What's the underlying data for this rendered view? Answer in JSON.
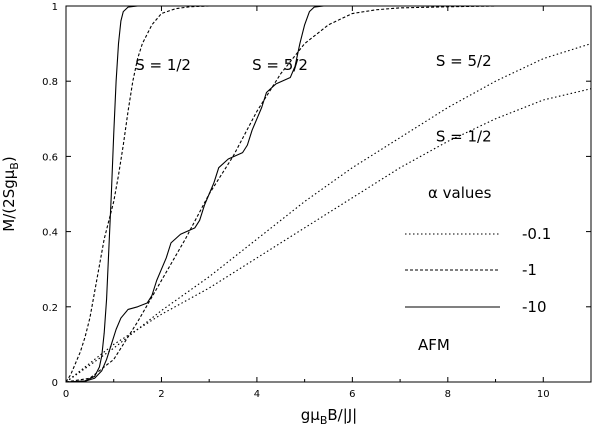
{
  "chart_data": {
    "type": "line",
    "xlabel": {
      "pre": "gμ",
      "sub": "B",
      "post": "B/|J|"
    },
    "ylabel": {
      "pre": "M/(2Sgμ",
      "sub": "B",
      "post": ")"
    },
    "xlim": [
      0,
      11
    ],
    "ylim": [
      0,
      1
    ],
    "xticks": [
      0,
      2,
      4,
      6,
      8,
      10
    ],
    "yticks": [
      0,
      0.2,
      0.4,
      0.6,
      0.8,
      1
    ],
    "xtick_labels": [
      "0",
      "2",
      "4",
      "6",
      "8",
      "10"
    ],
    "ytick_labels": [
      "0",
      "0.2",
      "0.4",
      "0.6",
      "0.8",
      "1"
    ],
    "grid": false,
    "legend": {
      "title": "α values",
      "placement": "right-center",
      "entries": [
        {
          "label": "-0.1",
          "style": "dotted"
        },
        {
          "label": "-1",
          "style": "dashed"
        },
        {
          "label": "-10",
          "style": "solid"
        }
      ],
      "footer": "AFM"
    },
    "annotations": [
      {
        "text": "S = 1/2",
        "x": 1.45,
        "y": 0.83
      },
      {
        "text": "S = 5/2",
        "x": 3.9,
        "y": 0.83
      },
      {
        "text": "S = 5/2",
        "x": 7.75,
        "y": 0.84
      },
      {
        "text": "S = 1/2",
        "x": 7.75,
        "y": 0.64
      }
    ],
    "series": [
      {
        "style": "solid",
        "spin": "1/2",
        "alpha": "-10",
        "x": [
          0,
          0.4,
          0.6,
          0.7,
          0.75,
          0.8,
          0.85,
          0.9,
          0.95,
          1.0,
          1.05,
          1.1,
          1.15,
          1.2,
          1.3,
          1.5,
          11
        ],
        "y": [
          0,
          0.003,
          0.015,
          0.04,
          0.07,
          0.13,
          0.22,
          0.36,
          0.5,
          0.66,
          0.8,
          0.9,
          0.96,
          0.985,
          0.997,
          1,
          1
        ]
      },
      {
        "style": "solid",
        "spin": "5/2",
        "alpha": "-10",
        "x": [
          0,
          0.4,
          0.6,
          0.75,
          0.85,
          0.95,
          1.05,
          1.15,
          1.3,
          1.5,
          1.7,
          1.8,
          1.9,
          2.0,
          2.1,
          2.2,
          2.4,
          2.7,
          2.8,
          2.9,
          3.0,
          3.1,
          3.2,
          3.4,
          3.7,
          3.8,
          3.9,
          4.0,
          4.1,
          4.2,
          4.4,
          4.7,
          4.8,
          4.9,
          5.0,
          5.1,
          5.2,
          5.4,
          11
        ],
        "y": [
          0,
          0.002,
          0.01,
          0.03,
          0.06,
          0.1,
          0.14,
          0.17,
          0.193,
          0.2,
          0.21,
          0.23,
          0.27,
          0.3,
          0.33,
          0.37,
          0.393,
          0.41,
          0.43,
          0.47,
          0.5,
          0.53,
          0.57,
          0.593,
          0.61,
          0.63,
          0.67,
          0.7,
          0.73,
          0.77,
          0.793,
          0.81,
          0.84,
          0.9,
          0.95,
          0.985,
          0.997,
          1,
          1
        ]
      },
      {
        "style": "dashed",
        "spin": "1/2",
        "alpha": "-1",
        "x": [
          0,
          0.1,
          0.2,
          0.3,
          0.4,
          0.5,
          0.6,
          0.7,
          0.8,
          0.9,
          1.0,
          1.1,
          1.2,
          1.3,
          1.4,
          1.5,
          1.6,
          1.8,
          2.0,
          2.3,
          2.6,
          3.0,
          11
        ],
        "y": [
          0,
          0.02,
          0.05,
          0.08,
          0.12,
          0.17,
          0.24,
          0.31,
          0.38,
          0.43,
          0.48,
          0.55,
          0.63,
          0.72,
          0.8,
          0.86,
          0.9,
          0.95,
          0.98,
          0.993,
          0.998,
          1,
          1
        ]
      },
      {
        "style": "dashed",
        "spin": "5/2",
        "alpha": "-1",
        "x": [
          0,
          0.5,
          1.0,
          1.5,
          2.0,
          2.5,
          3.0,
          3.5,
          4.0,
          4.5,
          5.0,
          5.5,
          6.0,
          6.5,
          7.0,
          8.0,
          9.0,
          11
        ],
        "y": [
          0,
          0.01,
          0.06,
          0.16,
          0.27,
          0.38,
          0.5,
          0.6,
          0.72,
          0.82,
          0.9,
          0.95,
          0.98,
          0.99,
          0.995,
          0.998,
          1,
          1
        ]
      },
      {
        "style": "dotted",
        "spin": "5/2",
        "alpha": "-0.1",
        "x": [
          0,
          1,
          2,
          3,
          4,
          5,
          6,
          7,
          8,
          9,
          10,
          11
        ],
        "y": [
          0,
          0.09,
          0.19,
          0.28,
          0.38,
          0.48,
          0.57,
          0.65,
          0.73,
          0.8,
          0.86,
          0.9
        ]
      },
      {
        "style": "dotted",
        "spin": "1/2",
        "alpha": "-0.1",
        "x": [
          0,
          1,
          2,
          3,
          4,
          5,
          6,
          7,
          8,
          9,
          10,
          11
        ],
        "y": [
          0,
          0.1,
          0.18,
          0.25,
          0.33,
          0.41,
          0.49,
          0.57,
          0.64,
          0.7,
          0.75,
          0.78
        ]
      }
    ]
  }
}
